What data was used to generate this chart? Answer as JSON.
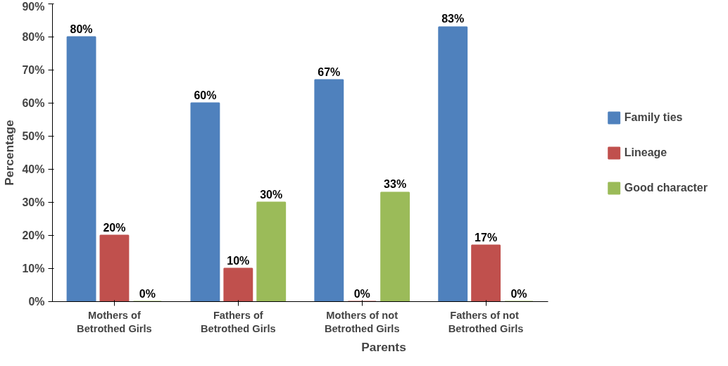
{
  "chart_data": {
    "type": "bar",
    "xlabel": "Parents",
    "ylabel": "Percentage",
    "categories": [
      "Mothers of\nBetrothed Girls",
      "Fathers of\nBetrothed Girls",
      "Mothers of not\nBetrothed Girls",
      "Fathers  of not\nBetrothed Girls"
    ],
    "series": [
      {
        "name": "Family ties",
        "color": "#4f81bd",
        "values": [
          80,
          60,
          67,
          83
        ],
        "value_labels": [
          "80%",
          "60%",
          "67%",
          "83%"
        ]
      },
      {
        "name": "Lineage",
        "color": "#c0504d",
        "values": [
          20,
          10,
          0,
          17
        ],
        "value_labels": [
          "20%",
          "10%",
          "0%",
          "17%"
        ]
      },
      {
        "name": "Good character",
        "color": "#9bbb59",
        "values": [
          0,
          30,
          33,
          0
        ],
        "value_labels": [
          "0%",
          "30%",
          "33%",
          "0%"
        ]
      }
    ],
    "ylim": [
      0,
      90
    ],
    "yticks": [
      {
        "value": 0,
        "label": "0%"
      },
      {
        "value": 10,
        "label": "10%"
      },
      {
        "value": 20,
        "label": "20%"
      },
      {
        "value": 30,
        "label": "30%"
      },
      {
        "value": 40,
        "label": "40%"
      },
      {
        "value": 50,
        "label": "50%"
      },
      {
        "value": 60,
        "label": "60%"
      },
      {
        "value": 70,
        "label": "70%"
      },
      {
        "value": 80,
        "label": "80%"
      },
      {
        "value": 90,
        "label": "90%"
      }
    ],
    "grid": false,
    "legend": "right"
  }
}
